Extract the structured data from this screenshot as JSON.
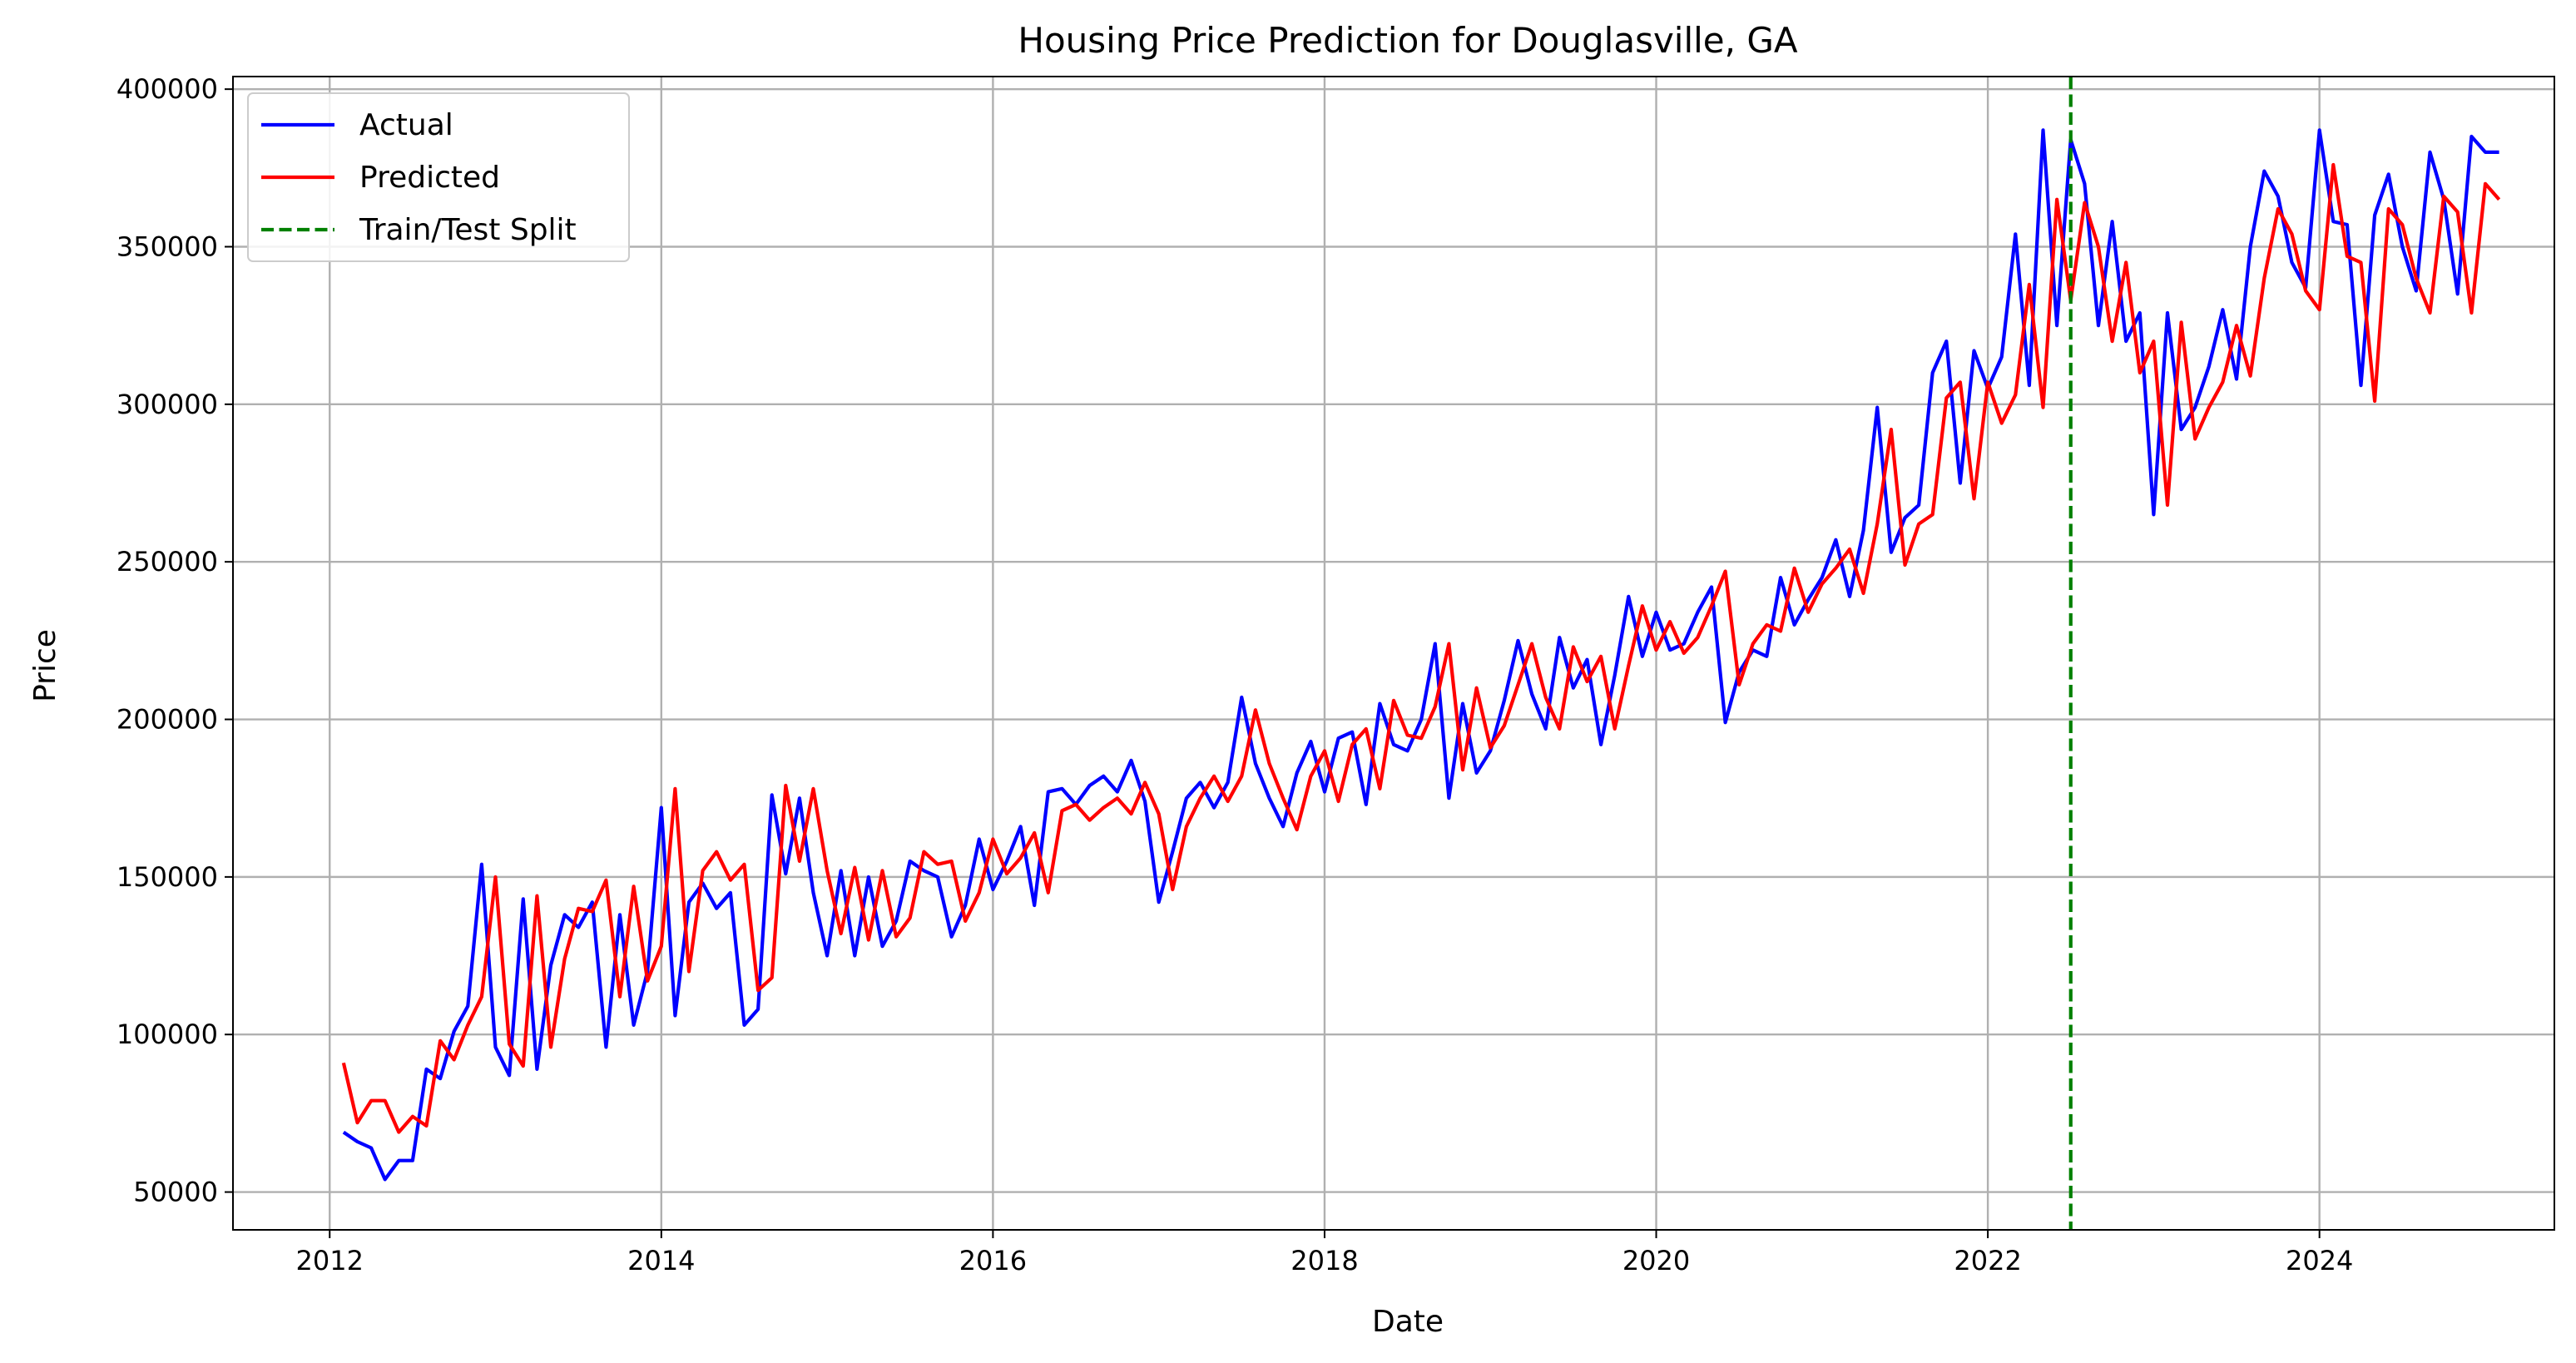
{
  "chart_data": {
    "type": "line",
    "title": "Housing Price Prediction for Douglasville, GA",
    "xlabel": "Date",
    "ylabel": "Price",
    "xlim": [
      "2011-06-01",
      "2025-06-01"
    ],
    "ylim": [
      38000,
      404000
    ],
    "x_ticks": [
      {
        "date": "2012-01-01",
        "label": "2012"
      },
      {
        "date": "2014-01-01",
        "label": "2014"
      },
      {
        "date": "2016-01-01",
        "label": "2016"
      },
      {
        "date": "2018-01-01",
        "label": "2018"
      },
      {
        "date": "2020-01-01",
        "label": "2020"
      },
      {
        "date": "2022-01-01",
        "label": "2022"
      },
      {
        "date": "2024-01-01",
        "label": "2024"
      }
    ],
    "y_ticks": [
      50000,
      100000,
      150000,
      200000,
      250000,
      300000,
      350000,
      400000
    ],
    "y_tick_labels": [
      "50000",
      "100000",
      "150000",
      "200000",
      "250000",
      "300000",
      "350000",
      "400000"
    ],
    "grid": true,
    "legend_position": "upper-left",
    "split_date": "2022-07-01",
    "legend": [
      {
        "label": "Actual",
        "color": "#0000ff",
        "style": "solid"
      },
      {
        "label": "Predicted",
        "color": "#ff0000",
        "style": "solid"
      },
      {
        "label": "Train/Test Split",
        "color": "#008000",
        "style": "dashed"
      }
    ],
    "start_date": "2012-02-01",
    "frequency": "monthly",
    "series": [
      {
        "name": "Actual",
        "color": "#0000ff",
        "values": [
          69000,
          66000,
          64000,
          54000,
          60000,
          60000,
          89000,
          86000,
          101000,
          109000,
          154000,
          96000,
          87000,
          143000,
          89000,
          122000,
          138000,
          134000,
          142000,
          96000,
          138000,
          103000,
          120000,
          172000,
          106000,
          142000,
          148000,
          140000,
          145000,
          103000,
          108000,
          176000,
          151000,
          175000,
          145000,
          125000,
          152000,
          125000,
          150000,
          128000,
          136000,
          155000,
          152000,
          150000,
          131000,
          141000,
          162000,
          146000,
          155000,
          166000,
          141000,
          177000,
          178000,
          173000,
          179000,
          182000,
          177000,
          187000,
          174000,
          142000,
          158000,
          175000,
          180000,
          172000,
          180000,
          207000,
          186000,
          175000,
          166000,
          183000,
          193000,
          177000,
          194000,
          196000,
          173000,
          205000,
          192000,
          190000,
          200000,
          224000,
          175000,
          205000,
          183000,
          190000,
          206000,
          225000,
          208000,
          197000,
          226000,
          210000,
          219000,
          192000,
          214000,
          239000,
          220000,
          234000,
          222000,
          224000,
          234000,
          242000,
          199000,
          215000,
          222000,
          220000,
          245000,
          230000,
          238000,
          245000,
          257000,
          239000,
          260000,
          299000,
          253000,
          264000,
          268000,
          310000,
          320000,
          275000,
          317000,
          305000,
          315000,
          354000,
          306000,
          387000,
          325000,
          384000,
          370000,
          325000,
          358000,
          320000,
          329000,
          265000,
          329000,
          292000,
          299000,
          312000,
          330000,
          308000,
          350000,
          374000,
          366000,
          345000,
          337000,
          387000,
          358000,
          357000,
          306000,
          360000,
          373000,
          350000,
          336000,
          380000,
          365000,
          335000,
          385000,
          380000,
          380000
        ]
      },
      {
        "name": "Predicted",
        "color": "#ff0000",
        "values": [
          91000,
          72000,
          79000,
          79000,
          69000,
          74000,
          71000,
          98000,
          92000,
          103000,
          112000,
          150000,
          97000,
          90000,
          144000,
          96000,
          124000,
          140000,
          139000,
          149000,
          112000,
          147000,
          117000,
          128000,
          178000,
          120000,
          152000,
          158000,
          149000,
          154000,
          114000,
          118000,
          179000,
          155000,
          178000,
          152000,
          132000,
          153000,
          130000,
          152000,
          131000,
          137000,
          158000,
          154000,
          155000,
          136000,
          145000,
          162000,
          151000,
          156000,
          164000,
          145000,
          171000,
          173000,
          168000,
          172000,
          175000,
          170000,
          180000,
          170000,
          146000,
          166000,
          175000,
          182000,
          174000,
          182000,
          203000,
          186000,
          175000,
          165000,
          182000,
          190000,
          174000,
          192000,
          197000,
          178000,
          206000,
          195000,
          194000,
          204000,
          224000,
          184000,
          210000,
          191000,
          198000,
          211000,
          224000,
          207000,
          197000,
          223000,
          212000,
          220000,
          197000,
          217000,
          236000,
          222000,
          231000,
          221000,
          226000,
          236000,
          247000,
          211000,
          224000,
          230000,
          228000,
          248000,
          234000,
          243000,
          248000,
          254000,
          240000,
          262000,
          292000,
          249000,
          262000,
          265000,
          302000,
          307000,
          270000,
          307000,
          294000,
          303000,
          338000,
          299000,
          365000,
          333000,
          364000,
          350000,
          320000,
          345000,
          310000,
          320000,
          268000,
          326000,
          289000,
          299000,
          307000,
          325000,
          309000,
          340000,
          362000,
          354000,
          336000,
          330000,
          376000,
          347000,
          345000,
          301000,
          362000,
          357000,
          340000,
          329000,
          366000,
          361000,
          329000,
          370000,
          365000
        ]
      }
    ]
  }
}
